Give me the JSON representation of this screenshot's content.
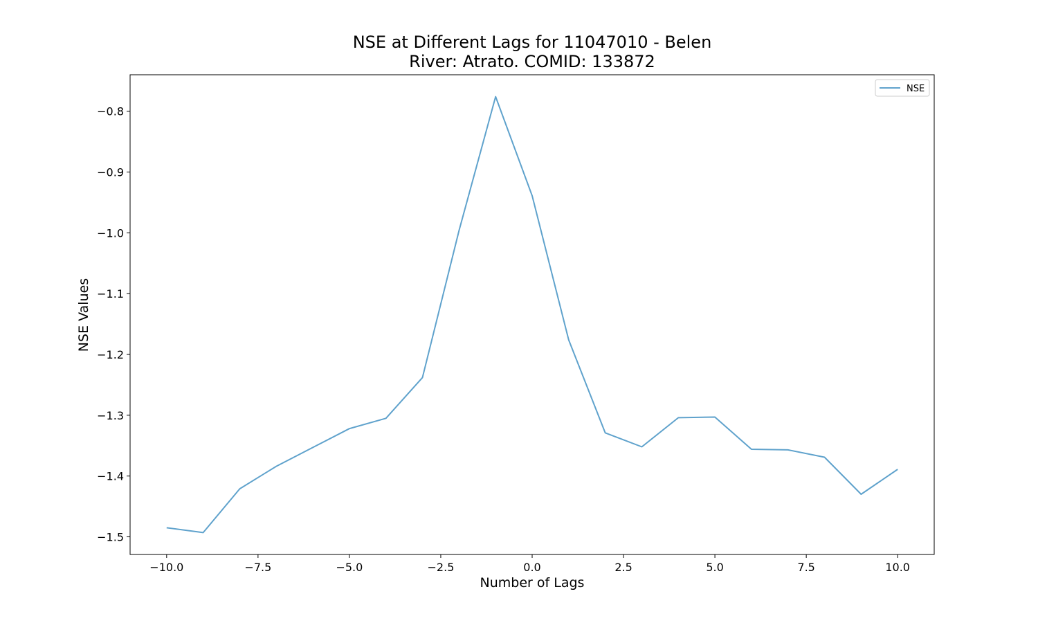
{
  "chart_data": {
    "type": "line",
    "title": "NSE at Different Lags for 11047010 - Belen",
    "subtitle": "River: Atrato. COMID: 133872",
    "xlabel": "Number of Lags",
    "ylabel": "NSE Values",
    "xlim": [
      -11,
      11
    ],
    "ylim": [
      -1.529,
      -0.74
    ],
    "x_ticks": [
      -10.0,
      -7.5,
      -5.0,
      -2.5,
      0.0,
      2.5,
      5.0,
      7.5,
      10.0
    ],
    "x_tick_labels": [
      "−10.0",
      "−7.5",
      "−5.0",
      "−2.5",
      "0.0",
      "2.5",
      "5.0",
      "7.5",
      "10.0"
    ],
    "y_ticks": [
      -0.8,
      -0.9,
      -1.0,
      -1.1,
      -1.2,
      -1.3,
      -1.4,
      -1.5
    ],
    "y_tick_labels": [
      "−0.8",
      "−0.9",
      "−1.0",
      "−1.1",
      "−1.2",
      "−1.3",
      "−1.4",
      "−1.5"
    ],
    "grid": false,
    "legend": "top-right",
    "series": [
      {
        "name": "NSE",
        "color": "#5fa2cc",
        "x": [
          -10,
          -9,
          -8,
          -7,
          -6,
          -5,
          -4,
          -3,
          -2,
          -1,
          0,
          1,
          2,
          3,
          4,
          5,
          6,
          7,
          8,
          9,
          10
        ],
        "y": [
          -1.485,
          -1.493,
          -1.421,
          -1.384,
          -1.353,
          -1.322,
          -1.305,
          -1.238,
          -0.996,
          -0.776,
          -0.939,
          -1.176,
          -1.329,
          -1.352,
          -1.304,
          -1.303,
          -1.356,
          -1.357,
          -1.369,
          -1.43,
          -1.389
        ]
      }
    ]
  }
}
